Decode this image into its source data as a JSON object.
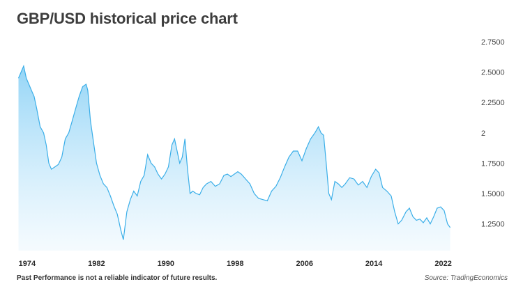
{
  "title": "GBP/USD historical price chart",
  "footer": {
    "disclaimer": "Past Performance is not a reliable indicator of future results.",
    "source": "Source: TradingEconomics"
  },
  "colors": {
    "line": "#3aaee8",
    "fill_top": "#8fd3f6",
    "fill_bottom": "#eef8fe"
  },
  "chart_data": {
    "type": "area",
    "title": "GBP/USD historical price chart",
    "xlabel": "",
    "ylabel": "",
    "x_tick_labels": [
      "1974",
      "1982",
      "1990",
      "1998",
      "2006",
      "2014",
      "2022"
    ],
    "y_tick_labels": [
      "1.2500",
      "1.5000",
      "1.7500",
      "2",
      "2.2500",
      "2.5000",
      "2.7500"
    ],
    "y_ticks": [
      1.25,
      1.5,
      1.75,
      2.0,
      2.25,
      2.5,
      2.75
    ],
    "xlim": [
      1972.8,
      2023.8
    ],
    "ylim": [
      1.03,
      2.75
    ],
    "grid": false,
    "series": [
      {
        "x": [
          1973.0,
          1973.3,
          1973.6,
          1973.9,
          1974.2,
          1974.5,
          1974.8,
          1975.1,
          1975.5,
          1975.9,
          1976.2,
          1976.5,
          1976.8,
          1977.2,
          1977.6,
          1978.0,
          1978.4,
          1978.8,
          1979.2,
          1979.6,
          1980.0,
          1980.4,
          1980.8,
          1981.0,
          1981.3,
          1981.6,
          1982.0,
          1982.4,
          1982.8,
          1983.2,
          1983.6,
          1984.0,
          1984.4,
          1984.8,
          1985.1,
          1985.5,
          1985.9,
          1986.3,
          1986.7,
          1987.1,
          1987.5,
          1987.9,
          1988.3,
          1988.7,
          1989.1,
          1989.5,
          1989.9,
          1990.3,
          1990.7,
          1991.0,
          1991.3,
          1991.6,
          1991.9,
          1992.2,
          1992.5,
          1992.8,
          1993.1,
          1993.5,
          1993.9,
          1994.3,
          1994.7,
          1995.2,
          1995.7,
          1996.2,
          1996.7,
          1997.1,
          1997.5,
          1997.9,
          1998.3,
          1998.7,
          1999.2,
          1999.7,
          2000.2,
          2000.7,
          2001.2,
          2001.7,
          2002.2,
          2002.7,
          2003.2,
          2003.7,
          2004.2,
          2004.7,
          2005.2,
          2005.7,
          2006.2,
          2006.7,
          2007.2,
          2007.6,
          2007.9,
          2008.2,
          2008.5,
          2008.8,
          2009.1,
          2009.5,
          2009.9,
          2010.3,
          2010.7,
          2011.2,
          2011.7,
          2012.2,
          2012.7,
          2013.2,
          2013.7,
          2014.2,
          2014.6,
          2015.0,
          2015.5,
          2016.0,
          2016.4,
          2016.8,
          2017.2,
          2017.7,
          2018.1,
          2018.5,
          2018.9,
          2019.3,
          2019.7,
          2020.1,
          2020.5,
          2020.9,
          2021.3,
          2021.7,
          2022.1,
          2022.5,
          2022.8
        ],
        "y": [
          2.45,
          2.5,
          2.55,
          2.45,
          2.4,
          2.35,
          2.3,
          2.2,
          2.05,
          2.0,
          1.9,
          1.75,
          1.7,
          1.72,
          1.74,
          1.8,
          1.95,
          2.0,
          2.1,
          2.2,
          2.3,
          2.38,
          2.4,
          2.35,
          2.1,
          1.95,
          1.75,
          1.65,
          1.58,
          1.55,
          1.48,
          1.4,
          1.33,
          1.2,
          1.12,
          1.35,
          1.45,
          1.52,
          1.48,
          1.6,
          1.65,
          1.82,
          1.75,
          1.72,
          1.66,
          1.62,
          1.66,
          1.72,
          1.9,
          1.95,
          1.85,
          1.75,
          1.8,
          1.95,
          1.7,
          1.5,
          1.52,
          1.5,
          1.49,
          1.55,
          1.58,
          1.6,
          1.56,
          1.58,
          1.65,
          1.66,
          1.64,
          1.66,
          1.68,
          1.66,
          1.62,
          1.58,
          1.5,
          1.46,
          1.45,
          1.44,
          1.52,
          1.56,
          1.63,
          1.72,
          1.8,
          1.85,
          1.85,
          1.77,
          1.87,
          1.95,
          2.0,
          2.05,
          2.0,
          1.98,
          1.75,
          1.5,
          1.45,
          1.6,
          1.58,
          1.55,
          1.58,
          1.63,
          1.62,
          1.57,
          1.6,
          1.55,
          1.64,
          1.7,
          1.67,
          1.55,
          1.52,
          1.48,
          1.35,
          1.25,
          1.28,
          1.35,
          1.38,
          1.31,
          1.28,
          1.29,
          1.26,
          1.3,
          1.25,
          1.31,
          1.38,
          1.39,
          1.36,
          1.25,
          1.22
        ]
      }
    ]
  }
}
